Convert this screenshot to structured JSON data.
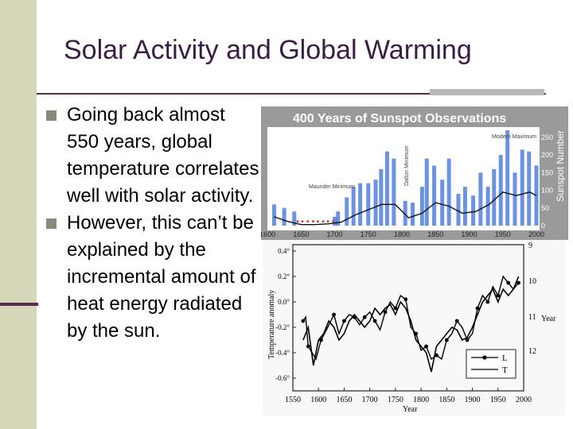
{
  "slide": {
    "title": "Solar Activity and Global Warming",
    "bullets": [
      "Going back almost 550 years, global temperature correlates well with solar activity.",
      "However, this can’t be explained by the incremental amount of heat energy radiated by the sun."
    ]
  },
  "colors": {
    "title": "#3a1c44",
    "left_bar": "#d6d6b8",
    "sunspot_bars": "#3a6fd8",
    "maunder_dots": "#d03030"
  },
  "chart_data": [
    {
      "type": "bar",
      "title": "400 Years of Sunspot Observations",
      "ylabel": "Sunspot Number",
      "xlim": [
        1600,
        2000
      ],
      "ylim": [
        0,
        270
      ],
      "x_ticks": [
        "1600",
        "1650",
        "1700",
        "1750",
        "1800",
        "1850",
        "1900",
        "1950",
        "2000"
      ],
      "y_ticks": [
        "0",
        "50",
        "100",
        "150",
        "200",
        "250"
      ],
      "annotations": [
        "Maunder Minimum",
        "Dalton Minimum",
        "Modern Maximum"
      ],
      "series": [
        {
          "kind": "cycle-peaks",
          "x": [
            1610,
            1625,
            1640,
            1700,
            1705,
            1718,
            1728,
            1738,
            1750,
            1761,
            1769,
            1778,
            1788,
            1805,
            1816,
            1830,
            1837,
            1848,
            1860,
            1870,
            1884,
            1894,
            1906,
            1917,
            1928,
            1937,
            1947,
            1957,
            1968,
            1979,
            1989,
            2000
          ],
          "values": [
            60,
            50,
            40,
            25,
            40,
            80,
            110,
            120,
            120,
            130,
            160,
            210,
            190,
            70,
            65,
            110,
            190,
            170,
            130,
            190,
            90,
            110,
            85,
            150,
            110,
            160,
            200,
            270,
            150,
            215,
            210,
            170
          ]
        },
        {
          "kind": "smoothed",
          "x": [
            1610,
            1630,
            1650,
            1670,
            1690,
            1710,
            1730,
            1750,
            1770,
            1790,
            1810,
            1830,
            1850,
            1870,
            1890,
            1910,
            1930,
            1950,
            1970,
            1990,
            2000
          ],
          "values": [
            25,
            12,
            3,
            3,
            5,
            10,
            30,
            45,
            60,
            60,
            22,
            35,
            65,
            55,
            35,
            40,
            60,
            95,
            85,
            95,
            85
          ]
        }
      ]
    },
    {
      "type": "line",
      "xlabel": "Year",
      "ylabel": "Temperature anomaly",
      "xlim": [
        1550,
        2000
      ],
      "ylim": [
        -0.7,
        0.45
      ],
      "y2_label": "Year",
      "y2_ticks": [
        "9",
        "10",
        "11",
        "12"
      ],
      "x_ticks": [
        "1550",
        "1600",
        "1650",
        "1700",
        "1750",
        "1800",
        "1850",
        "1900",
        "1950",
        "2000"
      ],
      "y_ticks": [
        "0.4°",
        "0.2°",
        "0.0°",
        "-0.2°",
        "-0.4°",
        "-0.6°"
      ],
      "legend": [
        "L",
        "T"
      ],
      "legend_position": "bottom-right",
      "series": [
        {
          "name": "L",
          "x": [
            1570,
            1575,
            1580,
            1595,
            1605,
            1618,
            1630,
            1640,
            1650,
            1660,
            1670,
            1680,
            1690,
            1700,
            1710,
            1720,
            1730,
            1740,
            1750,
            1760,
            1770,
            1780,
            1790,
            1800,
            1810,
            1820,
            1830,
            1840,
            1850,
            1860,
            1870,
            1880,
            1890,
            1900,
            1910,
            1920,
            1930,
            1940,
            1950,
            1960,
            1970,
            1980,
            1990
          ],
          "values": [
            -0.15,
            -0.12,
            -0.35,
            -0.45,
            -0.3,
            -0.2,
            -0.1,
            -0.25,
            -0.15,
            -0.1,
            -0.12,
            -0.18,
            -0.12,
            -0.08,
            -0.15,
            -0.22,
            -0.08,
            0.0,
            -0.05,
            0.05,
            0.02,
            -0.2,
            -0.25,
            -0.38,
            -0.35,
            -0.45,
            -0.42,
            -0.45,
            -0.3,
            -0.25,
            -0.15,
            -0.2,
            -0.3,
            -0.25,
            -0.05,
            0.05,
            0.0,
            0.12,
            0.05,
            0.2,
            0.15,
            0.1,
            0.15
          ]
        },
        {
          "name": "T",
          "x": [
            1570,
            1580,
            1590,
            1600,
            1610,
            1620,
            1630,
            1640,
            1650,
            1660,
            1670,
            1680,
            1690,
            1700,
            1710,
            1720,
            1730,
            1740,
            1750,
            1760,
            1770,
            1780,
            1790,
            1800,
            1810,
            1820,
            1830,
            1840,
            1850,
            1860,
            1870,
            1880,
            1890,
            1900,
            1910,
            1920,
            1930,
            1940,
            1950,
            1960,
            1970,
            1980,
            1990
          ],
          "values": [
            -0.3,
            -0.2,
            -0.5,
            -0.3,
            -0.25,
            -0.15,
            -0.2,
            -0.3,
            -0.25,
            -0.15,
            -0.1,
            -0.15,
            -0.2,
            -0.15,
            -0.05,
            -0.1,
            -0.05,
            -0.02,
            -0.1,
            0.0,
            -0.05,
            -0.15,
            -0.3,
            -0.35,
            -0.4,
            -0.55,
            -0.35,
            -0.3,
            -0.25,
            -0.2,
            -0.22,
            -0.3,
            -0.28,
            -0.2,
            -0.1,
            0.0,
            0.05,
            0.1,
            0.0,
            0.1,
            0.05,
            0.1,
            0.2
          ]
        }
      ]
    }
  ]
}
